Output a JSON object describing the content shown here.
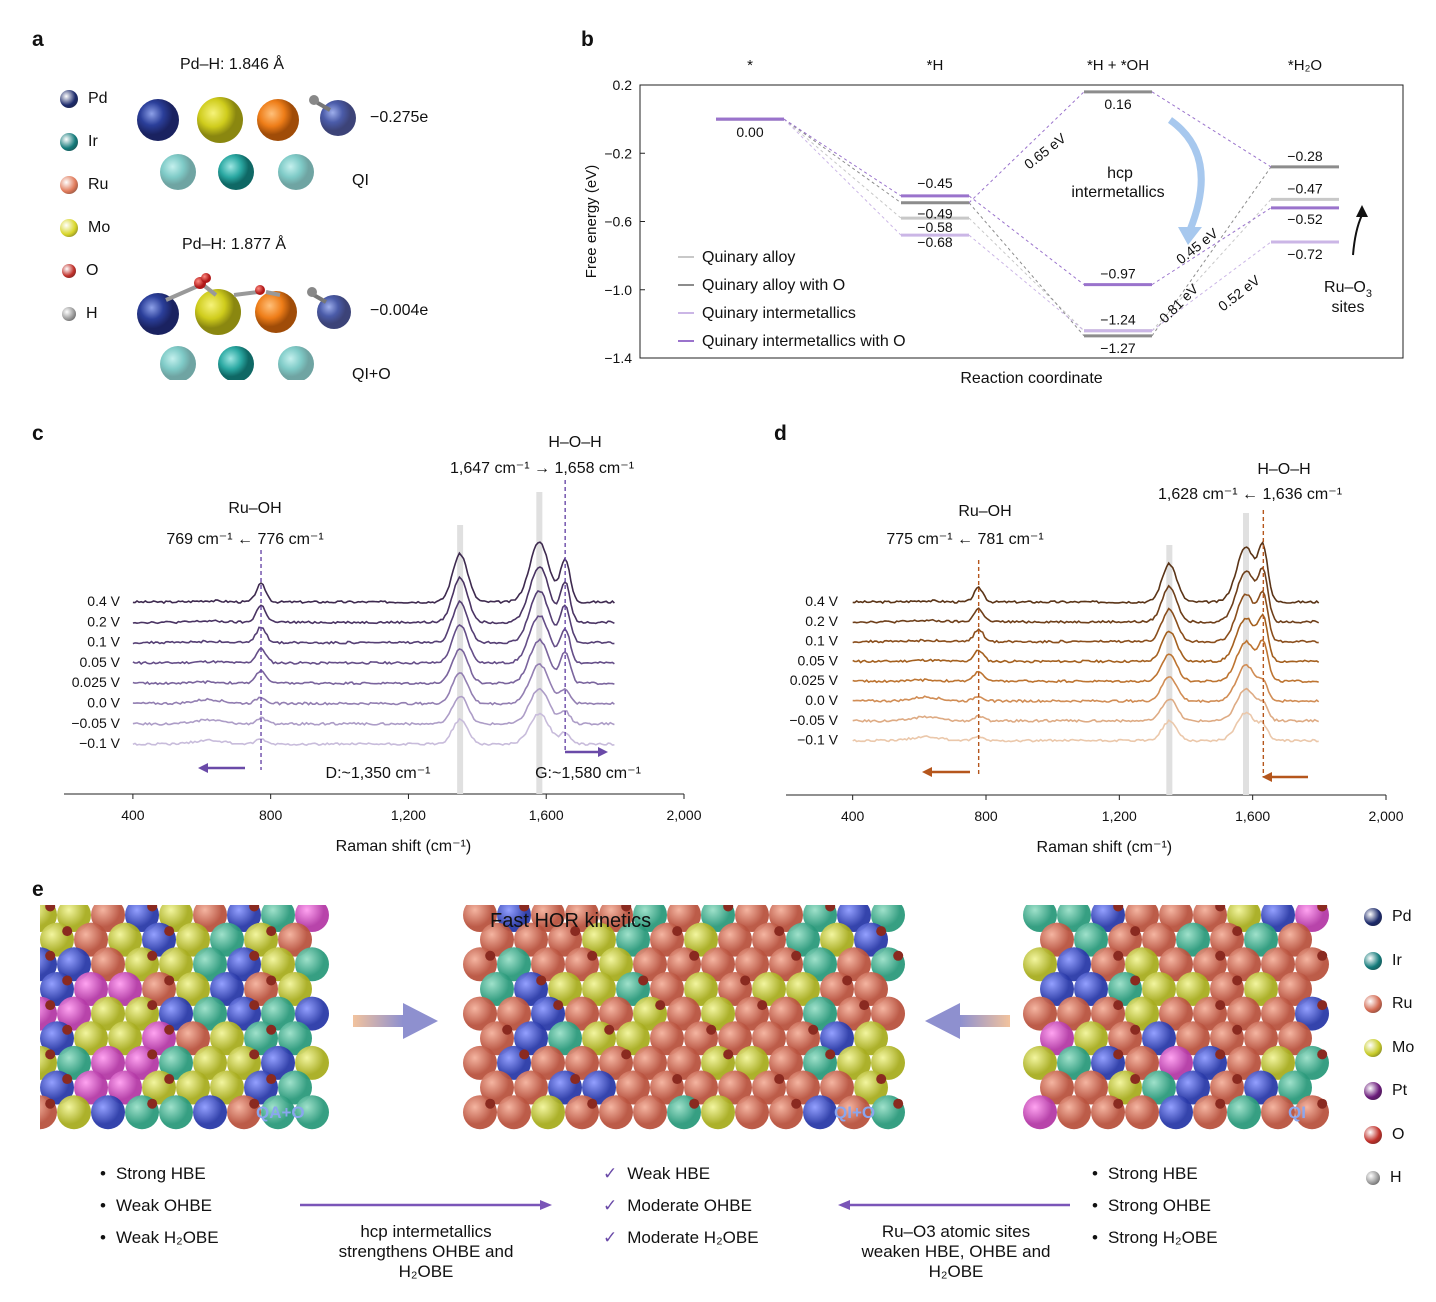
{
  "panels": {
    "a": "a",
    "b": "b",
    "c": "c",
    "d": "d",
    "e": "e"
  },
  "panel_a": {
    "legend": [
      {
        "label": "Pd",
        "color": "#1c2a6b"
      },
      {
        "label": "Ir",
        "color": "#137a7a"
      },
      {
        "label": "Ru",
        "color": "#e07a5a"
      },
      {
        "label": "Mo",
        "color": "#d8d62a"
      },
      {
        "label": "O",
        "color": "#c0302a"
      },
      {
        "label": "H",
        "color": "#9a9a9a"
      }
    ],
    "top_bond": "Pd–H: 1.846 Å",
    "top_charge": "−0.275e",
    "top_label": "QI",
    "bottom_bond": "Pd–H: 1.877 Å",
    "bottom_charge": "−0.004e",
    "bottom_label": "QI+O"
  },
  "chart_data": [
    {
      "panel": "b",
      "type": "line",
      "ylabel": "Free energy (eV)",
      "xlabel": "Reaction coordinate",
      "ylim": [
        -1.4,
        0.2
      ],
      "yticks": [
        "0.2",
        "−0.2",
        "−0.6",
        "−1.0",
        "−1.4"
      ],
      "states": [
        "*",
        "*H",
        "*H + *OH",
        "*H2O"
      ],
      "series": [
        {
          "name": "Quinary alloy",
          "color": "#c8c8c8",
          "values": [
            0.0,
            -0.58,
            -1.24,
            -0.47
          ]
        },
        {
          "name": "Quinary alloy with O",
          "color": "#8c8c8c",
          "values": [
            0.0,
            -0.49,
            -1.27,
            -0.28
          ]
        },
        {
          "name": "Quinary intermetallics",
          "color": "#cbb6e6",
          "values": [
            0.0,
            -0.68,
            -1.24,
            -0.72
          ]
        },
        {
          "name": "Quinary intermetallics with O",
          "color": "#9a73cc",
          "values": [
            0.0,
            -0.45,
            -0.97,
            -0.52
          ]
        }
      ],
      "level_labels": [
        {
          "state": 0,
          "value": 0.0,
          "text": "0.00"
        },
        {
          "state": 1,
          "value": -0.45,
          "text": "−0.45"
        },
        {
          "state": 1,
          "value": -0.49,
          "text": "−0.49"
        },
        {
          "state": 1,
          "value": -0.58,
          "text": "−0.58"
        },
        {
          "state": 1,
          "value": -0.68,
          "text": "−0.68"
        },
        {
          "state": 2,
          "value": 0.16,
          "text": "0.16"
        },
        {
          "state": 2,
          "value": -0.97,
          "text": "−0.97"
        },
        {
          "state": 2,
          "value": -1.24,
          "text": "−1.24"
        },
        {
          "state": 2,
          "value": -1.27,
          "text": "−1.27"
        },
        {
          "state": 3,
          "value": -0.28,
          "text": "−0.28"
        },
        {
          "state": 3,
          "value": -0.47,
          "text": "−0.47"
        },
        {
          "state": 3,
          "value": -0.52,
          "text": "−0.52"
        },
        {
          "state": 3,
          "value": -0.72,
          "text": "−0.72"
        }
      ],
      "barriers": [
        "0.65 eV",
        "0.45 eV",
        "0.81 eV",
        "0.52 eV"
      ],
      "annotations": [
        "hcp",
        "intermetallics",
        "Ru–O",
        "sites"
      ]
    },
    {
      "panel": "c",
      "type": "line",
      "xlabel": "Raman shift (cm⁻¹)",
      "xlim": [
        200,
        2000
      ],
      "xticks": [
        "400",
        "800",
        "1,200",
        "1,600",
        "2,000"
      ],
      "series": [
        {
          "name": "0.4 V",
          "color": "#3e2a4f"
        },
        {
          "name": "0.2 V",
          "color": "#4a3463"
        },
        {
          "name": "0.1 V",
          "color": "#553f74"
        },
        {
          "name": "0.05 V",
          "color": "#654e88"
        },
        {
          "name": "0.025 V",
          "color": "#7a649d"
        },
        {
          "name": "0.0 V",
          "color": "#937fb2"
        },
        {
          "name": "−0.05 V",
          "color": "#ad9dc7"
        },
        {
          "name": "−0.1 V",
          "color": "#c8bcdb"
        }
      ],
      "annotations": {
        "ruoh_title": "Ru–OH",
        "ruoh_shift": "769 cm⁻¹ ← 776 cm⁻¹",
        "hoh_title": "H–O–H",
        "hoh_shift": "1,647 cm⁻¹ → 1,658 cm⁻¹",
        "d_band": "D:~1,350 cm⁻¹",
        "g_band": "G:~1,580 cm⁻¹"
      }
    },
    {
      "panel": "d",
      "type": "line",
      "xlabel": "Raman shift (cm⁻¹)",
      "xlim": [
        200,
        2000
      ],
      "xticks": [
        "400",
        "800",
        "1,200",
        "1,600",
        "2,000"
      ],
      "series": [
        {
          "name": "0.4 V",
          "color": "#5a3417"
        },
        {
          "name": "0.2 V",
          "color": "#6e3f1a"
        },
        {
          "name": "0.1 V",
          "color": "#8a4e1c"
        },
        {
          "name": "0.05 V",
          "color": "#a4601f"
        },
        {
          "name": "0.025 V",
          "color": "#bd7431"
        },
        {
          "name": "0.0 V",
          "color": "#d18d55"
        },
        {
          "name": "−0.05 V",
          "color": "#deab84"
        },
        {
          "name": "−0.1 V",
          "color": "#ebc8ab"
        }
      ],
      "annotations": {
        "ruoh_title": "Ru–OH",
        "ruoh_shift": "775 cm⁻¹ ← 781 cm⁻¹",
        "hoh_title": "H–O–H",
        "hoh_shift": "1,628 cm⁻¹ ← 1,636 cm⁻¹"
      }
    }
  ],
  "panel_e": {
    "title": "Fast HOR kinetics",
    "left_tag": "QA+O",
    "center_tag": "QI+O",
    "right_tag": "QI",
    "legend": [
      {
        "label": "Pd",
        "color": "#1c2a6b"
      },
      {
        "label": "Ir",
        "color": "#137a7a"
      },
      {
        "label": "Ru",
        "color": "#d36a52"
      },
      {
        "label": "Mo",
        "color": "#c8cc2a"
      },
      {
        "label": "Pt",
        "color": "#6a1a7a"
      },
      {
        "label": "O",
        "color": "#c0302a"
      },
      {
        "label": "H",
        "color": "#9a9a9a"
      }
    ],
    "left_list": [
      "Strong HBE",
      "Weak OHBE",
      "Weak H2OBE"
    ],
    "center_list": [
      "Weak HBE",
      "Moderate OHBE",
      "Moderate H2OBE"
    ],
    "right_list": [
      "Strong HBE",
      "Strong OHBE",
      "Strong H2OBE"
    ],
    "left_arrow_caption": [
      "hcp intermetallics",
      "strengthens OHBE and",
      "H2OBE"
    ],
    "right_arrow_caption": [
      "Ru–O3 atomic sites",
      "weaken HBE, OHBE and",
      "H2OBE"
    ],
    "bullet": "•",
    "check": "✓"
  }
}
